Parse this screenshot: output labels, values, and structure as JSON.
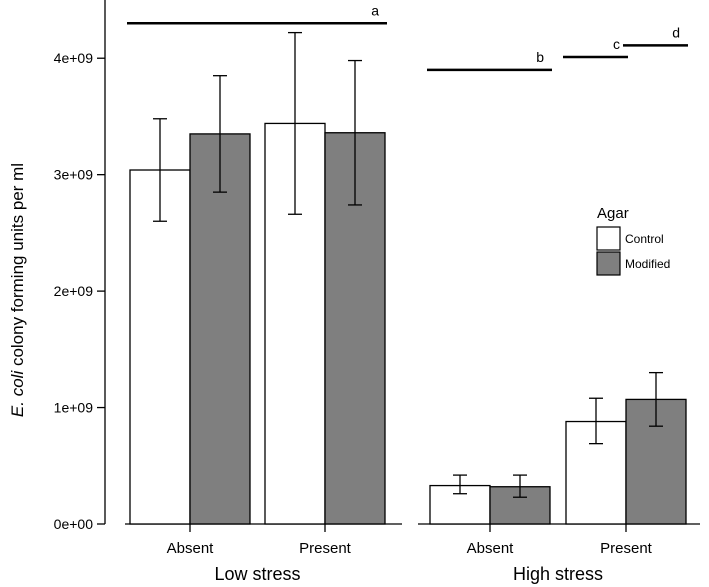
{
  "chart_data": {
    "type": "bar",
    "ylabel_italic": "E. coli",
    "ylabel_rest": " colony forming units per ml",
    "ylim": [
      0,
      4500000000
    ],
    "yticks": [
      0,
      1000000000,
      2000000000,
      3000000000,
      4000000000
    ],
    "ytick_labels": [
      "0e+00",
      "1e+09",
      "2e+09",
      "3e+09",
      "4e+09"
    ],
    "groups": [
      {
        "label": "Low stress",
        "categories": [
          "Absent",
          "Present"
        ]
      },
      {
        "label": "High stress",
        "categories": [
          "Absent",
          "Present"
        ]
      }
    ],
    "legend": {
      "title": "Agar",
      "placement": "right",
      "entries": [
        {
          "label": "Control",
          "color": "#ffffff"
        },
        {
          "label": "Modified",
          "color": "#7f7f7f"
        }
      ]
    },
    "series": [
      {
        "name": "Control",
        "color": "#ffffff",
        "values": [
          3040000000,
          3440000000,
          330000000,
          880000000
        ],
        "err_low": [
          2600000000,
          2660000000,
          260000000,
          690000000
        ],
        "err_high": [
          3480000000,
          4220000000,
          420000000,
          1080000000
        ]
      },
      {
        "name": "Modified",
        "color": "#7f7f7f",
        "values": [
          3350000000,
          3360000000,
          320000000,
          1070000000
        ],
        "err_low": [
          2850000000,
          2740000000,
          230000000,
          840000000
        ],
        "err_high": [
          3850000000,
          3980000000,
          420000000,
          1300000000
        ]
      }
    ],
    "significance": [
      {
        "letter": "a",
        "y": 4300000000,
        "from_bar": 0,
        "to_bar": 3
      },
      {
        "letter": "b",
        "y": 3900000000,
        "from_bar": 4,
        "to_bar": 5
      },
      {
        "letter": "c",
        "y": 4010000000,
        "from_bar": 6,
        "to_bar": 6
      },
      {
        "letter": "d",
        "y": 4110000000,
        "from_bar": 7,
        "to_bar": 7
      }
    ]
  }
}
